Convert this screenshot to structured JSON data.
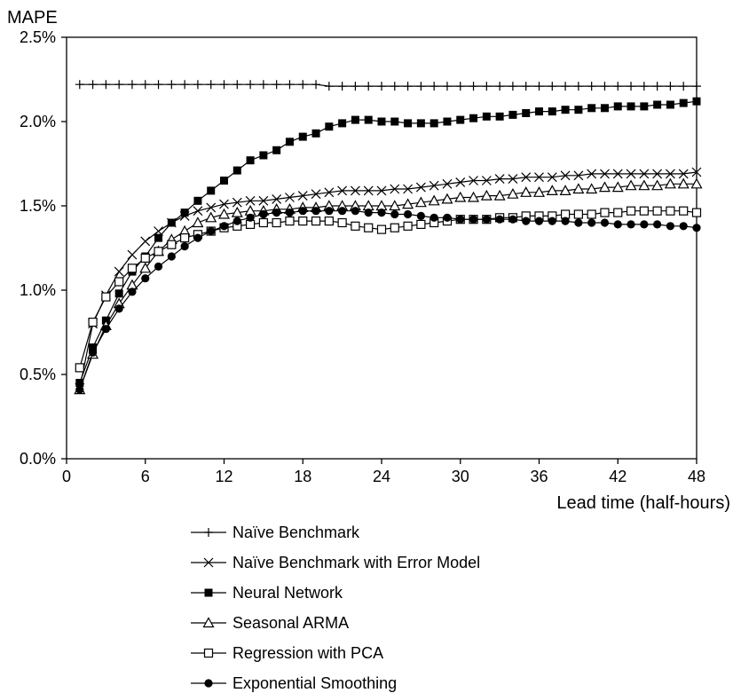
{
  "chart_data": {
    "type": "line",
    "ylabel": "MAPE",
    "xlabel": "Lead time (half-hours)",
    "xlim": [
      0,
      48
    ],
    "ylim": [
      0,
      2.5
    ],
    "x_ticks": [
      0,
      6,
      12,
      18,
      24,
      30,
      36,
      42,
      48
    ],
    "y_ticks": [
      0,
      0.5,
      1.0,
      1.5,
      2.0,
      2.5
    ],
    "y_tick_labels": [
      "0.0%",
      "0.5%",
      "1.0%",
      "1.5%",
      "2.0%",
      "2.5%"
    ],
    "x_tick_labels": [
      "0",
      "6",
      "12",
      "18",
      "24",
      "30",
      "36",
      "42",
      "48"
    ],
    "grid": false,
    "legend_position": "bottom",
    "x": [
      1,
      2,
      3,
      4,
      5,
      6,
      7,
      8,
      9,
      10,
      11,
      12,
      13,
      14,
      15,
      16,
      17,
      18,
      19,
      20,
      21,
      22,
      23,
      24,
      25,
      26,
      27,
      28,
      29,
      30,
      31,
      32,
      33,
      34,
      35,
      36,
      37,
      38,
      39,
      40,
      41,
      42,
      43,
      44,
      45,
      46,
      47,
      48
    ],
    "series": [
      {
        "name": "Naïve Benchmark",
        "marker": "plus",
        "values": [
          2.22,
          2.22,
          2.22,
          2.22,
          2.22,
          2.22,
          2.22,
          2.22,
          2.22,
          2.22,
          2.22,
          2.22,
          2.22,
          2.22,
          2.22,
          2.22,
          2.22,
          2.22,
          2.22,
          2.21,
          2.21,
          2.21,
          2.21,
          2.21,
          2.21,
          2.21,
          2.21,
          2.21,
          2.21,
          2.21,
          2.21,
          2.21,
          2.21,
          2.21,
          2.21,
          2.21,
          2.21,
          2.21,
          2.21,
          2.21,
          2.21,
          2.21,
          2.21,
          2.21,
          2.21,
          2.21,
          2.21,
          2.21
        ]
      },
      {
        "name": "Naïve Benchmark with Error Model",
        "marker": "x",
        "values": [
          0.42,
          0.8,
          0.97,
          1.11,
          1.21,
          1.29,
          1.35,
          1.4,
          1.44,
          1.47,
          1.49,
          1.51,
          1.52,
          1.53,
          1.53,
          1.54,
          1.55,
          1.56,
          1.57,
          1.58,
          1.59,
          1.59,
          1.59,
          1.59,
          1.6,
          1.6,
          1.61,
          1.62,
          1.63,
          1.64,
          1.65,
          1.65,
          1.66,
          1.66,
          1.67,
          1.67,
          1.67,
          1.68,
          1.68,
          1.69,
          1.69,
          1.69,
          1.69,
          1.69,
          1.69,
          1.69,
          1.69,
          1.7
        ]
      },
      {
        "name": "Neural Network",
        "marker": "filled-square",
        "values": [
          0.45,
          0.66,
          0.82,
          0.98,
          1.11,
          1.2,
          1.31,
          1.4,
          1.46,
          1.53,
          1.59,
          1.65,
          1.71,
          1.77,
          1.8,
          1.83,
          1.88,
          1.91,
          1.93,
          1.97,
          1.99,
          2.01,
          2.01,
          2.0,
          2.0,
          1.99,
          1.99,
          1.99,
          2.0,
          2.01,
          2.02,
          2.03,
          2.03,
          2.04,
          2.05,
          2.06,
          2.06,
          2.07,
          2.07,
          2.08,
          2.08,
          2.09,
          2.09,
          2.09,
          2.1,
          2.1,
          2.11,
          2.12
        ]
      },
      {
        "name": "Seasonal ARMA",
        "marker": "open-triangle",
        "values": [
          0.41,
          0.62,
          0.79,
          0.92,
          1.03,
          1.13,
          1.23,
          1.3,
          1.35,
          1.4,
          1.43,
          1.45,
          1.46,
          1.47,
          1.47,
          1.48,
          1.48,
          1.49,
          1.49,
          1.5,
          1.5,
          1.5,
          1.5,
          1.5,
          1.5,
          1.51,
          1.52,
          1.53,
          1.54,
          1.55,
          1.55,
          1.56,
          1.56,
          1.57,
          1.58,
          1.58,
          1.59,
          1.59,
          1.6,
          1.6,
          1.61,
          1.61,
          1.62,
          1.62,
          1.62,
          1.63,
          1.63,
          1.63
        ]
      },
      {
        "name": "Regression with PCA",
        "marker": "open-square",
        "values": [
          0.54,
          0.81,
          0.96,
          1.05,
          1.13,
          1.19,
          1.23,
          1.27,
          1.31,
          1.33,
          1.35,
          1.37,
          1.38,
          1.39,
          1.4,
          1.4,
          1.41,
          1.41,
          1.41,
          1.41,
          1.4,
          1.38,
          1.37,
          1.36,
          1.37,
          1.38,
          1.39,
          1.4,
          1.41,
          1.42,
          1.42,
          1.42,
          1.43,
          1.43,
          1.44,
          1.44,
          1.44,
          1.45,
          1.45,
          1.45,
          1.46,
          1.46,
          1.47,
          1.47,
          1.47,
          1.47,
          1.47,
          1.46
        ]
      },
      {
        "name": "Exponential Smoothing",
        "marker": "filled-circle",
        "values": [
          0.41,
          0.63,
          0.77,
          0.89,
          0.99,
          1.07,
          1.14,
          1.2,
          1.26,
          1.31,
          1.35,
          1.38,
          1.41,
          1.43,
          1.45,
          1.46,
          1.46,
          1.47,
          1.47,
          1.47,
          1.47,
          1.47,
          1.46,
          1.46,
          1.45,
          1.45,
          1.44,
          1.43,
          1.43,
          1.42,
          1.42,
          1.42,
          1.42,
          1.42,
          1.41,
          1.41,
          1.41,
          1.41,
          1.4,
          1.4,
          1.4,
          1.39,
          1.39,
          1.39,
          1.39,
          1.38,
          1.38,
          1.37
        ]
      }
    ]
  }
}
